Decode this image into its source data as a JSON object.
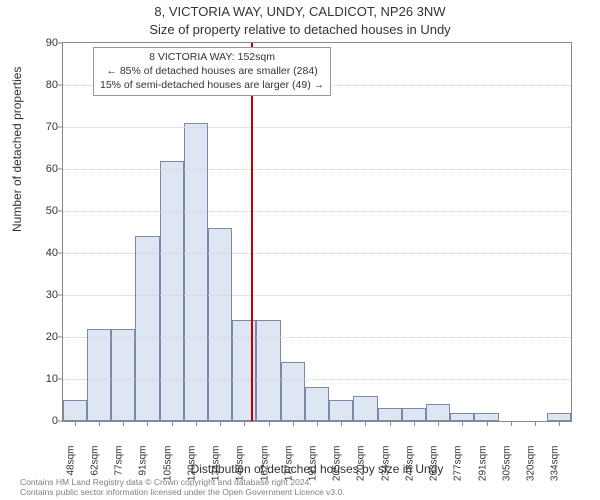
{
  "title_line1": "8, VICTORIA WAY, UNDY, CALDICOT, NP26 3NW",
  "title_line2": "Size of property relative to detached houses in Undy",
  "ylabel": "Number of detached properties",
  "xlabel": "Distribution of detached houses by size in Undy",
  "footer_line1": "Contains HM Land Registry data © Crown copyright and database right 2024.",
  "footer_line2": "Contains public sector information licensed under the Open Government Licence v3.0.",
  "annotation": {
    "line1": "8 VICTORIA WAY: 152sqm",
    "line2": "← 85% of detached houses are smaller (284)",
    "line3": "15% of semi-detached houses are larger (49) →"
  },
  "chart": {
    "type": "histogram",
    "ylim": [
      0,
      90
    ],
    "ytick_step": 10,
    "bar_fill": "#dde6f2",
    "bar_stroke": "#7a8aa8",
    "grid_color": "#cfcfcf",
    "ref_value": 152,
    "ref_color": "#c00000",
    "x_min": 41,
    "x_max": 341,
    "bar_width_sqm": 14.3,
    "categories": [
      "48sqm",
      "62sqm",
      "77sqm",
      "91sqm",
      "105sqm",
      "120sqm",
      "134sqm",
      "148sqm",
      "162sqm",
      "177sqm",
      "191sqm",
      "205sqm",
      "220sqm",
      "234sqm",
      "248sqm",
      "263sqm",
      "277sqm",
      "291sqm",
      "305sqm",
      "320sqm",
      "334sqm"
    ],
    "x_centers": [
      48,
      62.3,
      76.6,
      90.9,
      105.2,
      119.5,
      133.8,
      148.1,
      162.4,
      176.7,
      191,
      205.3,
      219.6,
      233.9,
      248.2,
      262.5,
      276.8,
      291.1,
      305.4,
      319.7,
      334
    ],
    "values": [
      5,
      22,
      22,
      44,
      62,
      71,
      46,
      24,
      24,
      14,
      8,
      5,
      6,
      3,
      3,
      4,
      2,
      2,
      0,
      0,
      2
    ]
  }
}
